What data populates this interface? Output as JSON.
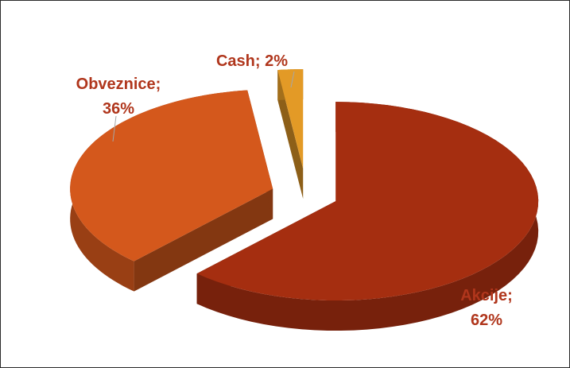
{
  "chart_data": {
    "type": "pie",
    "title": "",
    "slices": [
      {
        "name": "Akcije",
        "value": 62,
        "label": [
          "Akcije;",
          "62%"
        ],
        "color": "#a52e10"
      },
      {
        "name": "Obveznice",
        "value": 36,
        "label": [
          "Obveznice;",
          "36%"
        ],
        "color": "#d4581c"
      },
      {
        "name": "Cash",
        "value": 2,
        "label": [
          "Cash; 2%"
        ],
        "color": "#e39a26"
      }
    ],
    "legend": "none"
  }
}
